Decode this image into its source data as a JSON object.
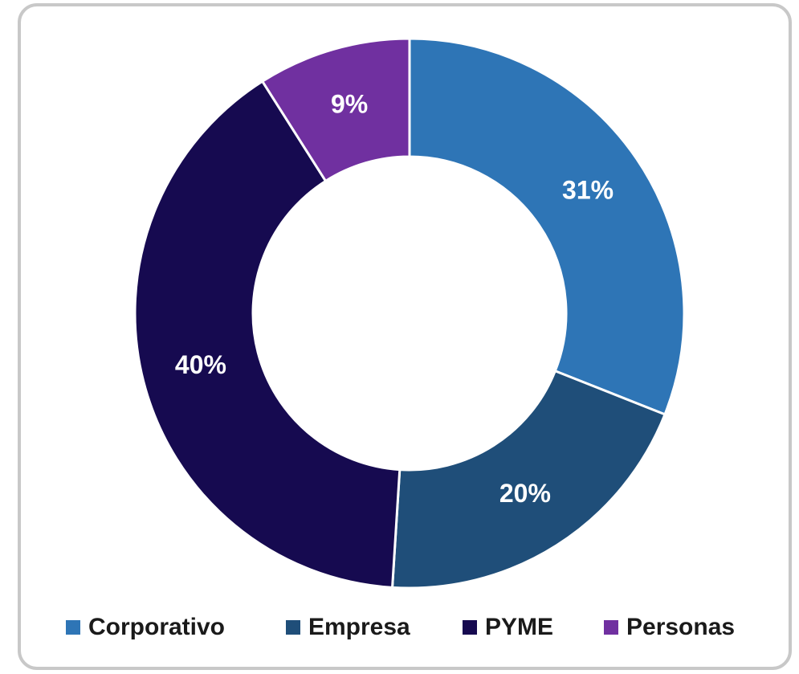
{
  "chart_data": {
    "type": "donut",
    "categories": [
      "Corporativo",
      "Empresa",
      "PYME",
      "Personas"
    ],
    "values": [
      31,
      20,
      40,
      9
    ],
    "value_labels": [
      "31%",
      "20%",
      "40%",
      "9%"
    ],
    "colors": [
      "#2e75b6",
      "#1f4e79",
      "#160a50",
      "#7030a0"
    ],
    "legend": "bottom"
  }
}
